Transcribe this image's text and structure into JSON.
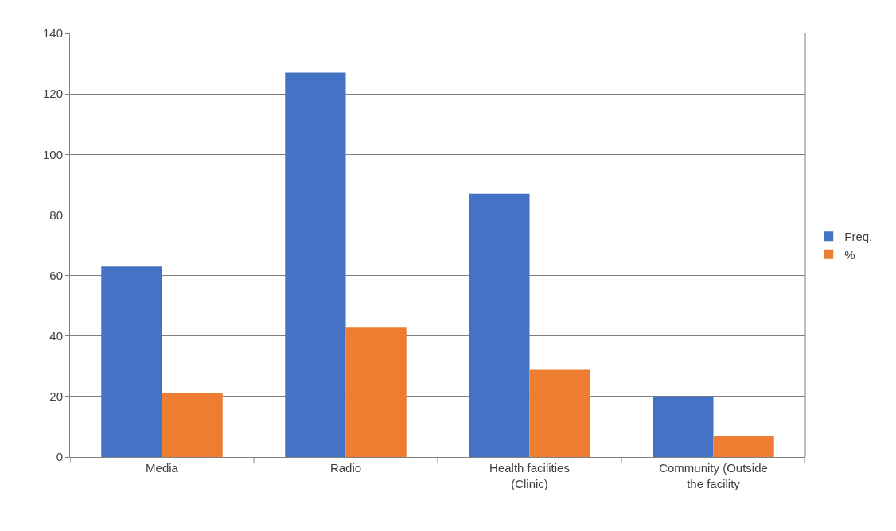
{
  "chart_data": {
    "type": "bar",
    "categories": [
      "Media",
      "Radio",
      "Health facilities\n(Clinic)",
      "Community (Outside\nthe facility"
    ],
    "series": [
      {
        "name": "Freq.",
        "color": "#4472c4",
        "values": [
          63,
          127,
          87,
          20
        ]
      },
      {
        "name": "%",
        "color": "#ed7d31",
        "values": [
          21,
          43,
          29,
          7
        ]
      }
    ],
    "ylim": [
      0,
      140
    ],
    "yticks": [
      0,
      20,
      40,
      60,
      80,
      100,
      120,
      140
    ],
    "grid": "y",
    "legend": "right"
  }
}
